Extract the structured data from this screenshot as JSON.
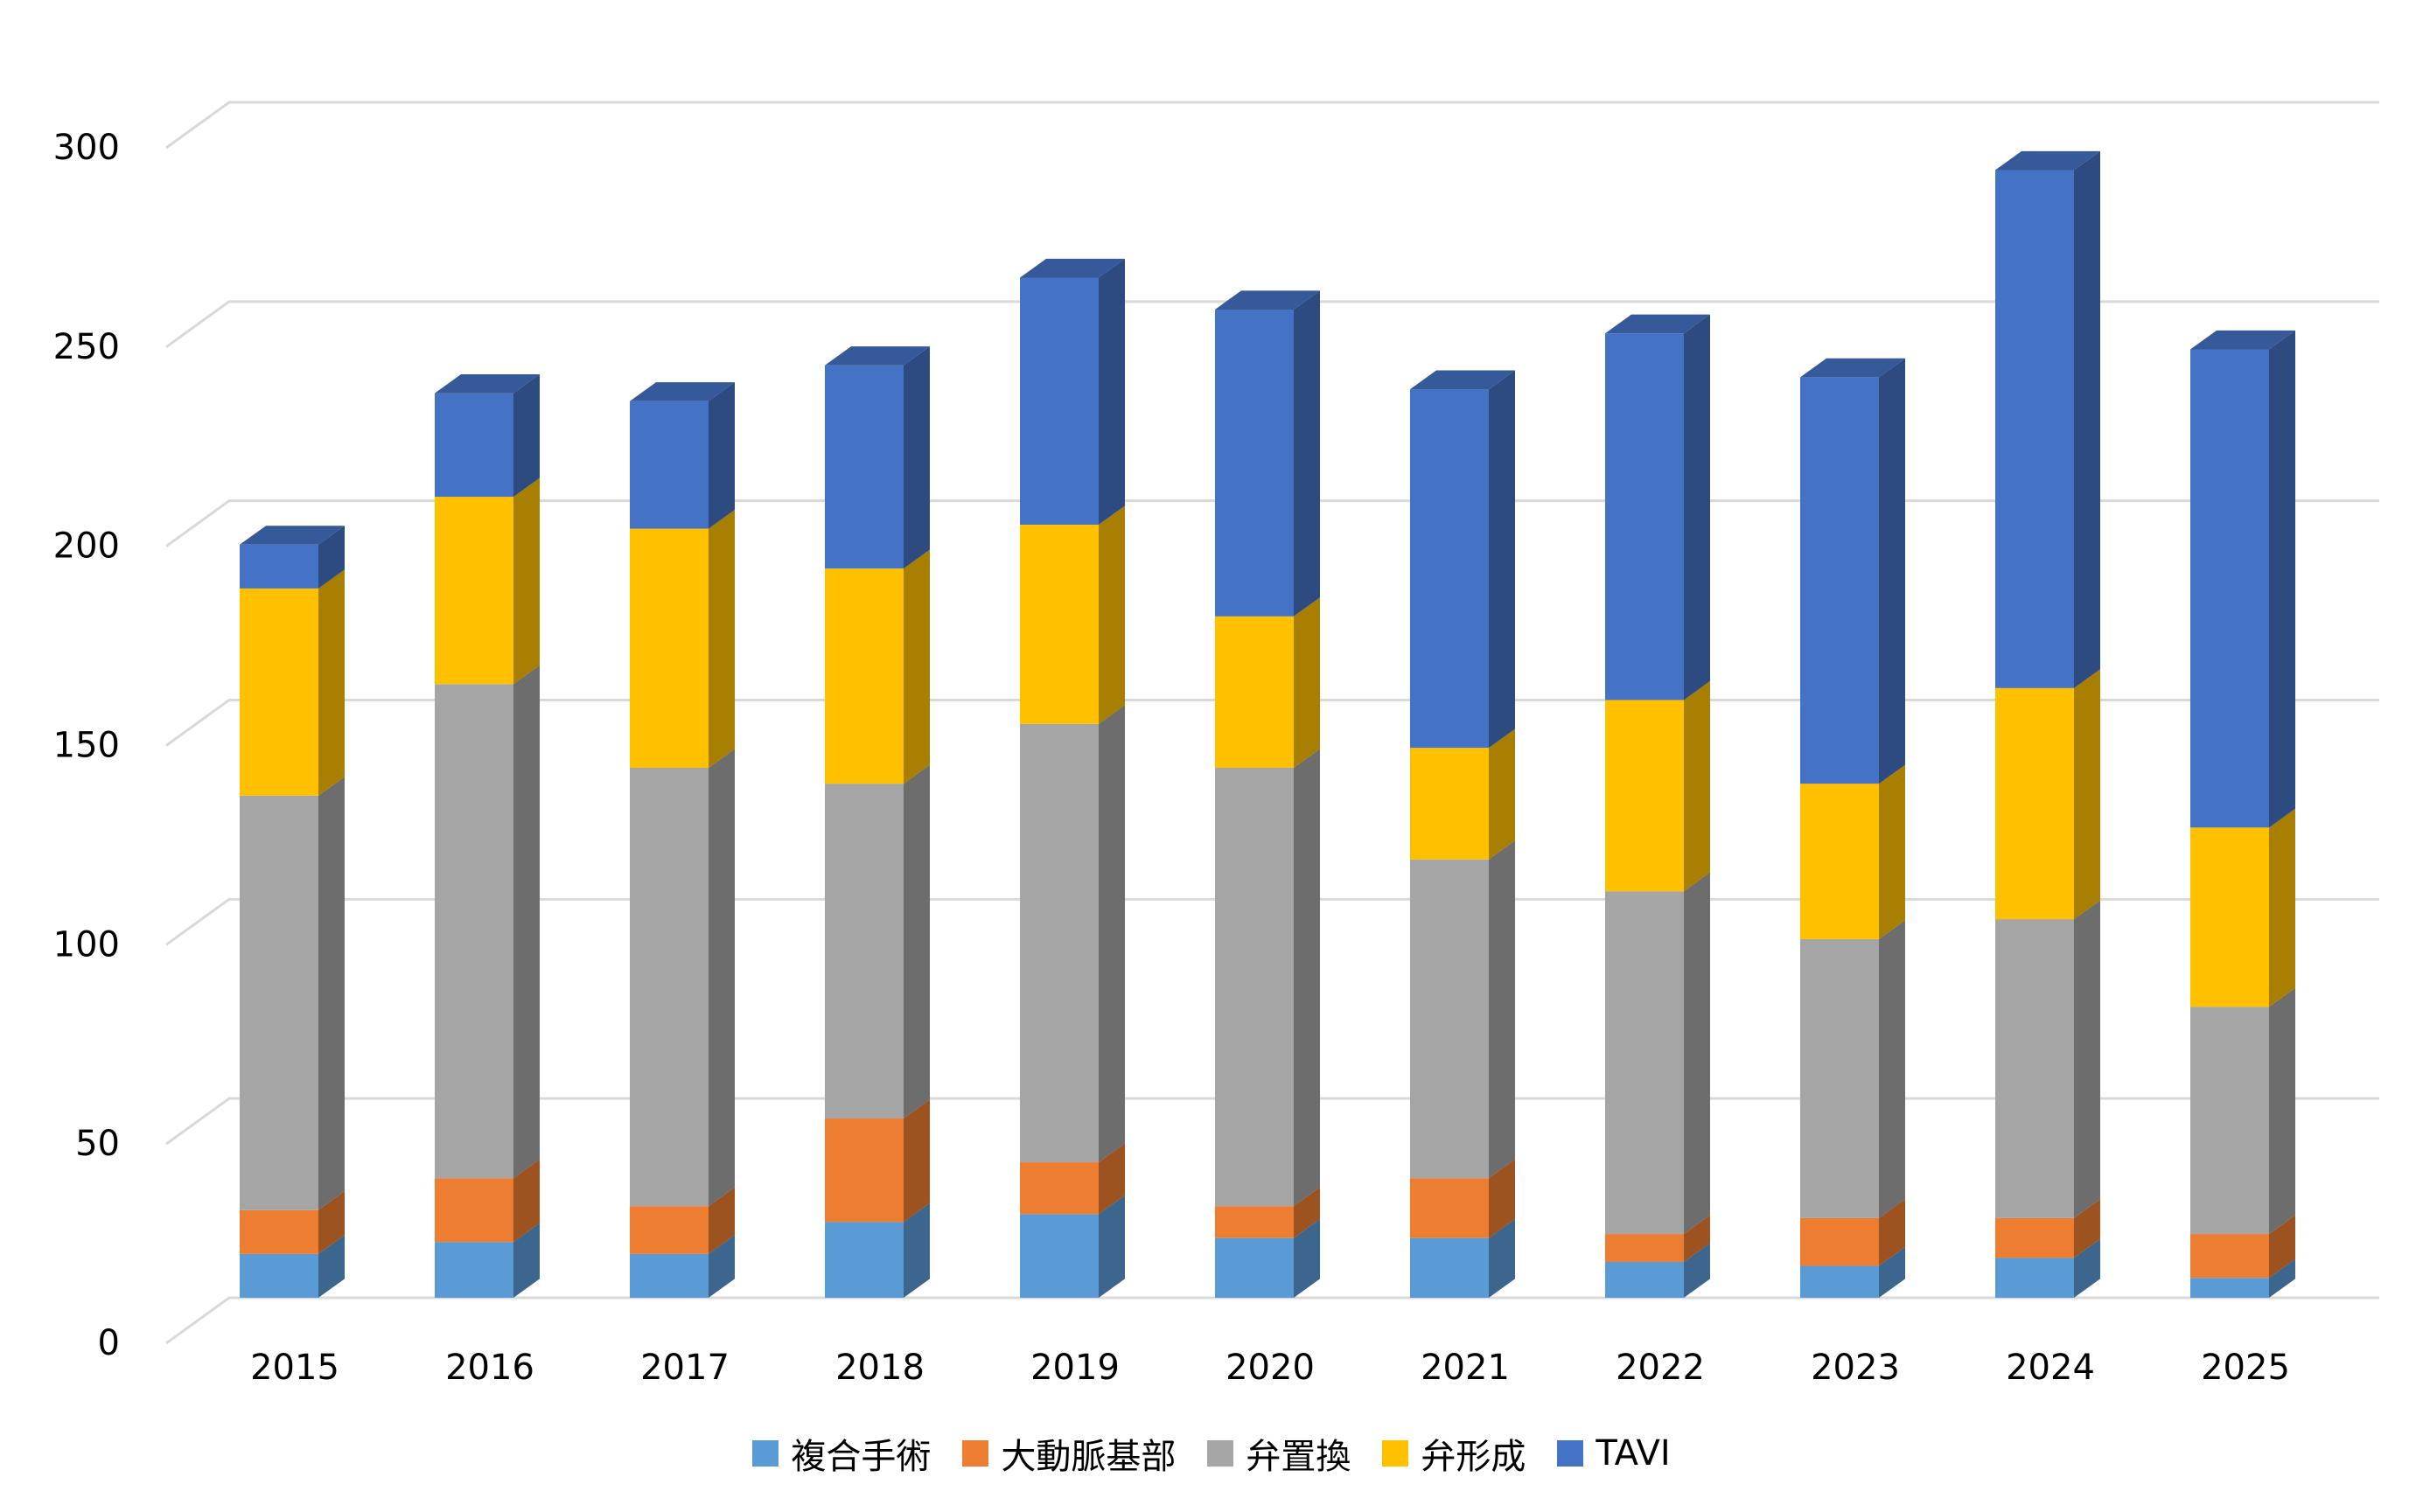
{
  "chart_data": {
    "type": "bar",
    "stacked": true,
    "three_d": true,
    "categories": [
      "2015",
      "2016",
      "2017",
      "2018",
      "2019",
      "2020",
      "2021",
      "2022",
      "2023",
      "2024",
      "2025"
    ],
    "series": [
      {
        "name": "複合手術",
        "color": "#5B9BD5",
        "values": [
          11,
          14,
          11,
          19,
          21,
          15,
          15,
          9,
          8,
          10,
          5
        ]
      },
      {
        "name": "大動脈基部",
        "color": "#ED7D31",
        "values": [
          11,
          16,
          12,
          26,
          13,
          8,
          15,
          7,
          12,
          10,
          11
        ]
      },
      {
        "name": "弁置換",
        "color": "#A5A5A5",
        "values": [
          104,
          124,
          110,
          84,
          110,
          110,
          80,
          86,
          70,
          75,
          57
        ]
      },
      {
        "name": "弁形成",
        "color": "#FFC000",
        "values": [
          52,
          47,
          60,
          54,
          50,
          38,
          28,
          48,
          39,
          58,
          45
        ]
      },
      {
        "name": "TAVI",
        "color": "#4472C4",
        "values": [
          11,
          26,
          32,
          51,
          62,
          77,
          90,
          92,
          102,
          130,
          120
        ]
      }
    ],
    "ylim": [
      0,
      300
    ],
    "yticks": [
      0,
      50,
      100,
      150,
      200,
      250,
      300
    ],
    "grid": true,
    "legend": "bottom",
    "title": "",
    "xlabel": "",
    "ylabel": ""
  }
}
